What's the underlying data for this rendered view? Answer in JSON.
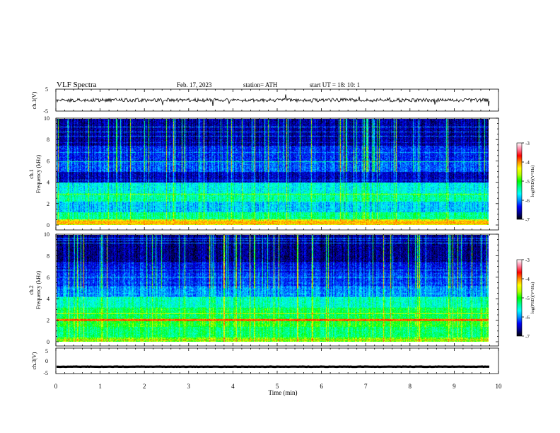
{
  "header": {
    "title": "VLF  Spectra",
    "date": "Feb. 17, 2023",
    "station": "station= ATH",
    "start": "start  UT  =    18: 10: 1"
  },
  "colors": {
    "colormap": [
      "#000000",
      "#00008b",
      "#0000ff",
      "#0090ff",
      "#00ffff",
      "#00ff90",
      "#00ff00",
      "#b4ff00",
      "#ffff00",
      "#ff8c00",
      "#ff0000",
      "#ff80a0",
      "#ffffff"
    ],
    "trace": "#000000"
  },
  "chart_data": [
    {
      "name": "ch1-waveform",
      "type": "line",
      "ylabel": "ch.1(V)",
      "ylim": [
        -5,
        5
      ],
      "y_ticks": [
        "5",
        "-5"
      ],
      "xlim": [
        0,
        10
      ],
      "approx_level": 0.0,
      "approx_amplitude": 1.0
    },
    {
      "name": "ch1-spectrogram",
      "type": "heatmap",
      "ylabel": "ch.1\nFrequency (kHz)",
      "ylim": [
        0,
        10
      ],
      "y_ticks": [
        "0",
        "2",
        "4",
        "6",
        "8",
        "10"
      ],
      "xlim": [
        0,
        10
      ],
      "data_end_min": 9.8,
      "colorbar": {
        "label": "log(PSD)(V²/Hz)",
        "range": [
          -7,
          -3
        ],
        "ticks": [
          "-3",
          "-4",
          "-5",
          "-6",
          "-7"
        ]
      }
    },
    {
      "name": "ch2-spectrogram",
      "type": "heatmap",
      "ylabel": "ch.2\nFrequency (kHz)",
      "ylim": [
        0,
        10
      ],
      "y_ticks": [
        "0",
        "2",
        "4",
        "6",
        "8",
        "10"
      ],
      "xlim": [
        0,
        10
      ],
      "data_end_min": 9.8,
      "colorbar": {
        "label": "log(PSD)(V²/Hz)",
        "range": [
          -7,
          -3
        ],
        "ticks": [
          "-3",
          "-4",
          "-5",
          "-6",
          "-7"
        ]
      }
    },
    {
      "name": "ch3-waveform",
      "type": "line",
      "ylabel": "ch.3(V)",
      "ylim": [
        -5,
        5
      ],
      "y_ticks": [
        "5",
        "0",
        "-5"
      ],
      "xlim": [
        0,
        10
      ],
      "approx_level": -2.3,
      "approx_amplitude": 0.15
    }
  ],
  "x_axis": {
    "label": "Time  (min)",
    "ticks": [
      "0",
      "1",
      "2",
      "3",
      "4",
      "5",
      "6",
      "7",
      "8",
      "9",
      "10"
    ]
  }
}
